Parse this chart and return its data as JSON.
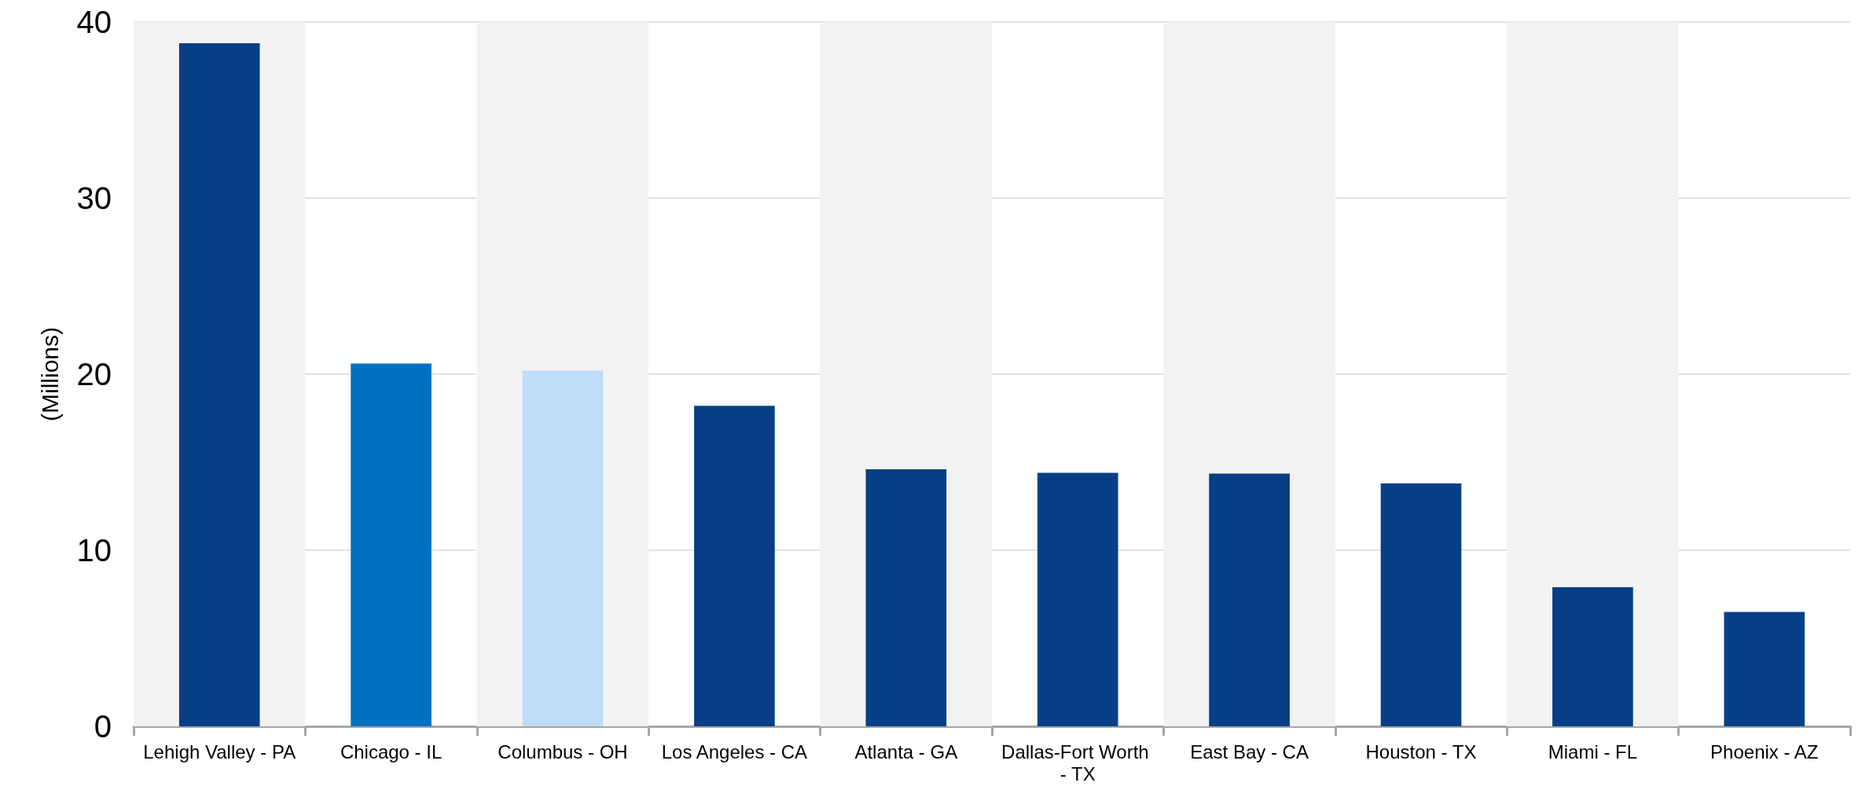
{
  "chart_data": {
    "type": "bar",
    "ylabel": "(Millions)",
    "categories": [
      "Lehigh Valley - PA",
      "Chicago - IL",
      "Columbus - OH",
      "Los Angeles - CA",
      "Atlanta - GA",
      "Dallas-Fort Worth - TX",
      "East Bay - CA",
      "Houston - TX",
      "Miami - FL",
      "Phoenix - AZ"
    ],
    "values": [
      38.8,
      20.6,
      20.2,
      18.2,
      14.6,
      14.4,
      14.35,
      13.8,
      7.9,
      6.5
    ],
    "colors": [
      "#063f85",
      "#0070c0",
      "#bfdcf9",
      "#063f85",
      "#063f85",
      "#063f85",
      "#063f85",
      "#063f85",
      "#063f85",
      "#063f85"
    ],
    "ylim": [
      0,
      40
    ],
    "yticks": [
      0,
      10,
      20,
      30,
      40
    ],
    "grid": "y",
    "bands": [
      {
        "axis": "x",
        "from": "Lehigh Valley - PA",
        "to": "Lehigh Valley - PA",
        "color": "#f2f2f2"
      },
      {
        "axis": "x",
        "from": "Columbus - OH",
        "to": "Columbus - OH",
        "color": "#f2f2f2"
      },
      {
        "axis": "x",
        "from": "Atlanta - GA",
        "to": "Atlanta - GA",
        "color": "#f2f2f2"
      },
      {
        "axis": "x",
        "from": "East Bay - CA",
        "to": "East Bay - CA",
        "color": "#f2f2f2"
      },
      {
        "axis": "x",
        "from": "Miami - FL",
        "to": "Miami - FL",
        "color": "#f2f2f2"
      }
    ]
  }
}
